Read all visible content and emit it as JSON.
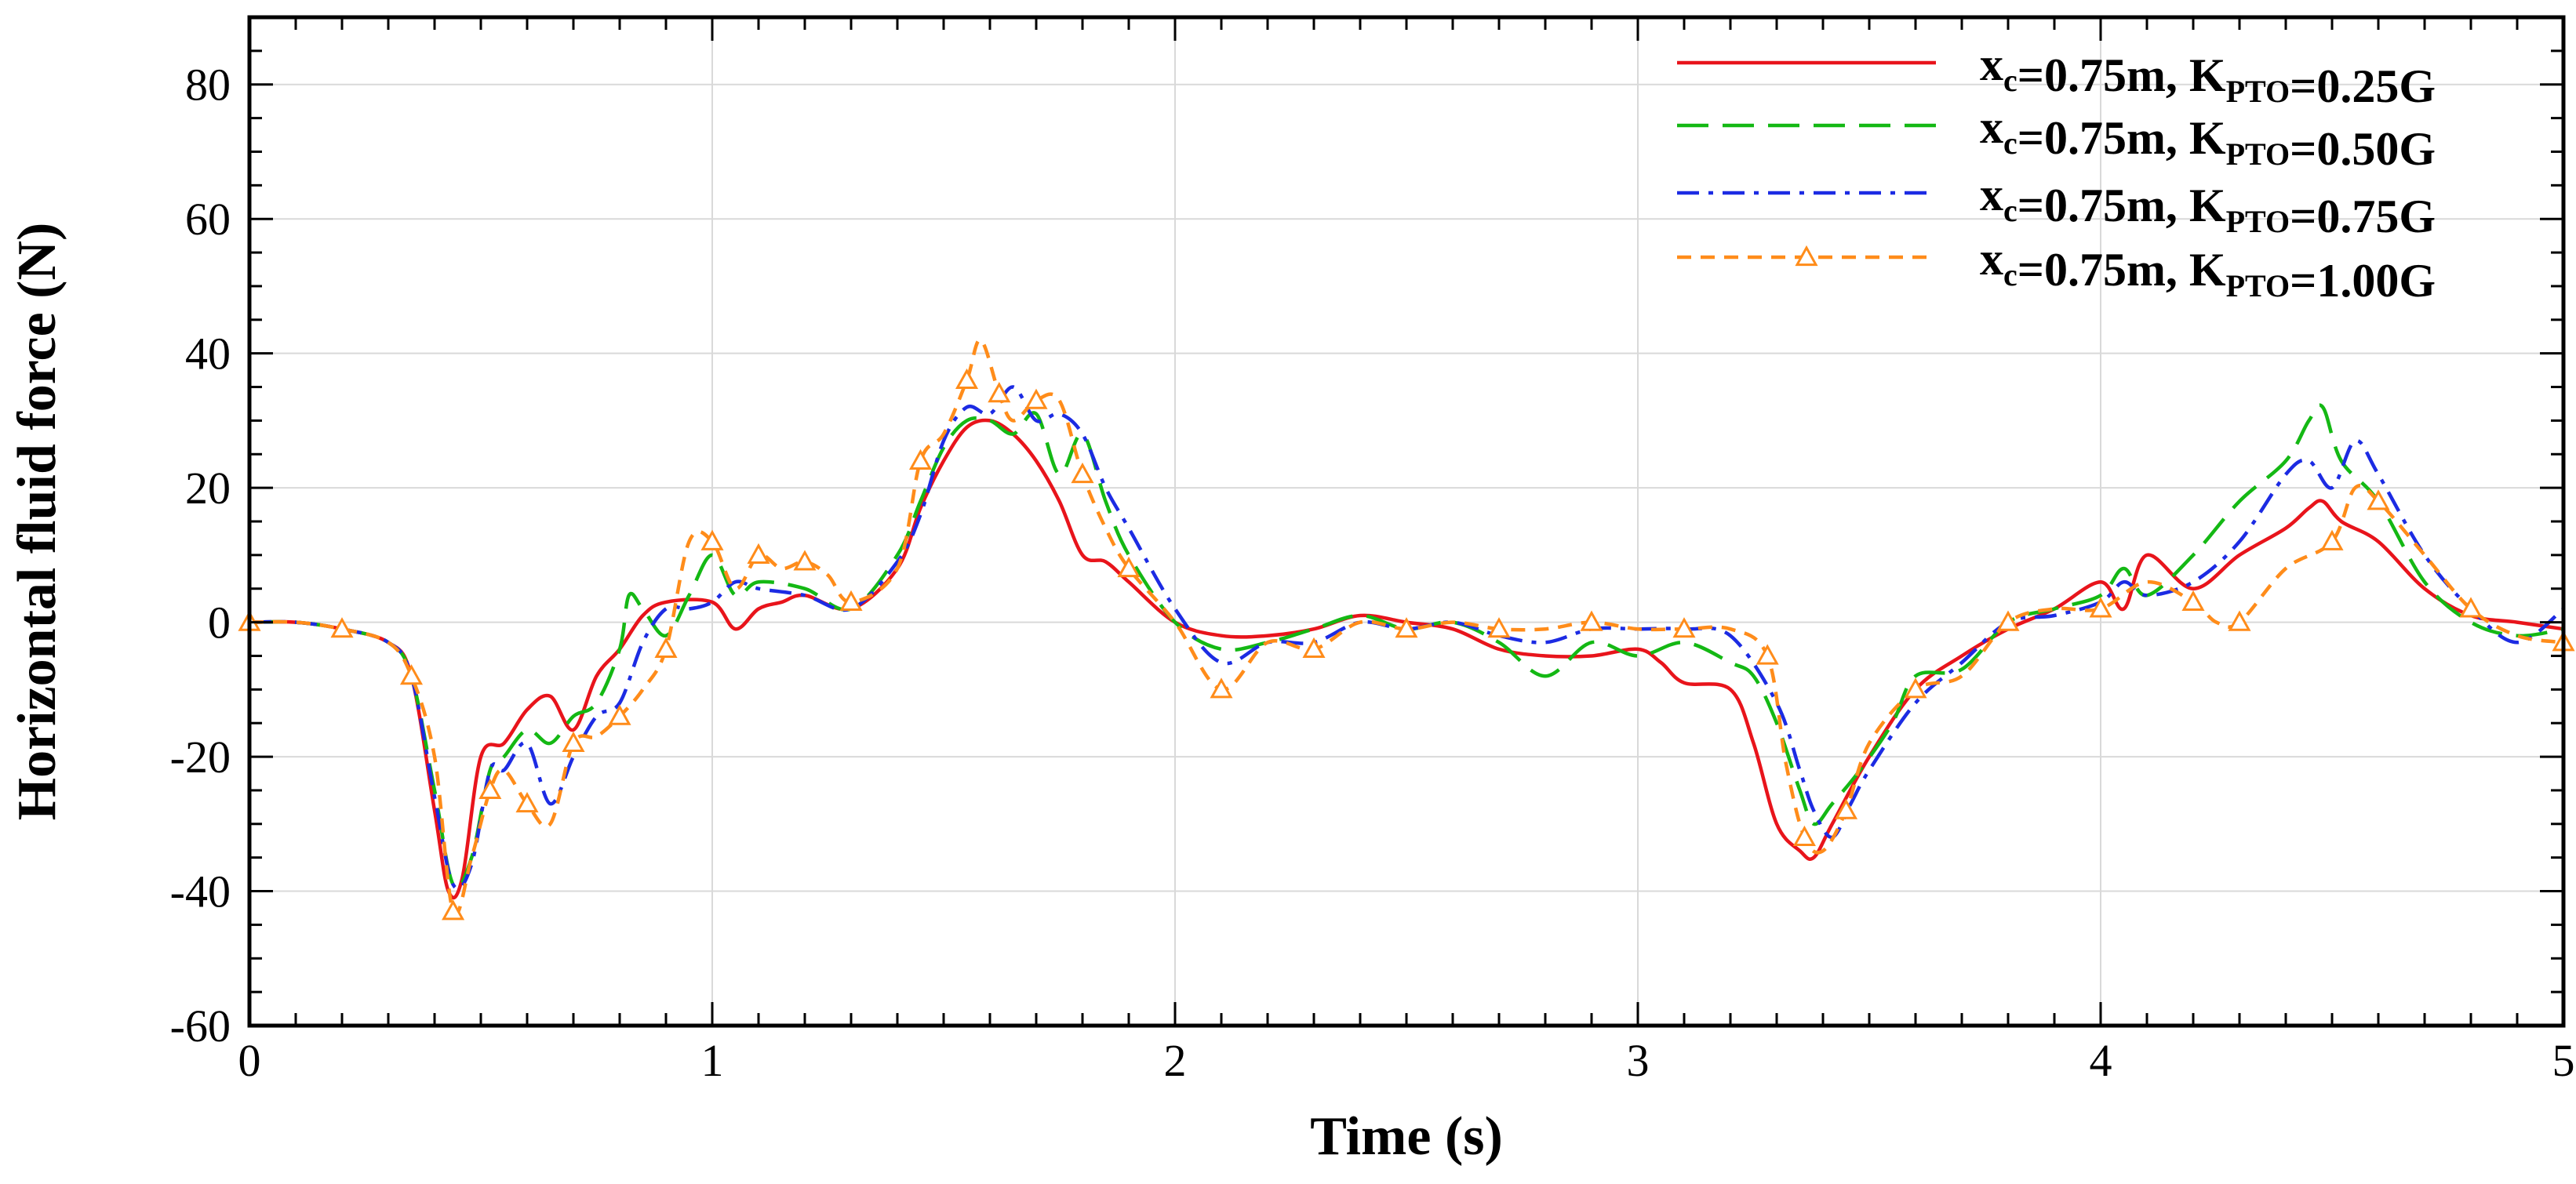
{
  "chart_data": {
    "type": "line",
    "xlabel": "Time (s)",
    "ylabel": "Horizontal fluid force (N)",
    "xlim": [
      0,
      5
    ],
    "ylim": [
      -60,
      90
    ],
    "x_ticks": [
      "0",
      "1",
      "2",
      "3",
      "4",
      "5"
    ],
    "y_ticks": [
      "-60",
      "-40",
      "-20",
      "0",
      "20",
      "40",
      "60",
      "80"
    ],
    "grid": true,
    "legend_position": "top-right",
    "series": [
      {
        "label_main": "x",
        "label_sub": "c",
        "label_mid": "=0.75m, K",
        "label_sub2": "PTO",
        "label_end": "=0.25G",
        "color": "#e8141b",
        "style": "solid",
        "marker": "none",
        "x": [
          0,
          0.1,
          0.2,
          0.3,
          0.35,
          0.4,
          0.43,
          0.46,
          0.5,
          0.55,
          0.6,
          0.65,
          0.7,
          0.75,
          0.8,
          0.85,
          0.9,
          1.0,
          1.05,
          1.1,
          1.15,
          1.2,
          1.3,
          1.4,
          1.45,
          1.5,
          1.55,
          1.6,
          1.65,
          1.7,
          1.75,
          1.8,
          1.85,
          1.9,
          2.0,
          2.1,
          2.2,
          2.3,
          2.4,
          2.5,
          2.6,
          2.7,
          2.8,
          2.9,
          3.0,
          3.05,
          3.1,
          3.2,
          3.25,
          3.3,
          3.35,
          3.38,
          3.42,
          3.5,
          3.6,
          3.7,
          3.8,
          3.9,
          4.0,
          4.05,
          4.1,
          4.2,
          4.3,
          4.4,
          4.45,
          4.48,
          4.52,
          4.6,
          4.7,
          4.8,
          4.9,
          5.0
        ],
        "y": [
          0,
          0,
          -1,
          -3,
          -8,
          -28,
          -40,
          -38,
          -20,
          -18,
          -13,
          -11,
          -16,
          -8,
          -4,
          1,
          3,
          3,
          -1,
          2,
          3,
          4,
          2,
          8,
          17,
          24,
          29,
          30,
          28,
          24,
          18,
          10,
          9,
          6,
          0,
          -2,
          -2,
          -1,
          1,
          0,
          -1,
          -4,
          -5,
          -5,
          -4,
          -6,
          -9,
          -10,
          -18,
          -30,
          -34,
          -35,
          -30,
          -20,
          -10,
          -5,
          -1,
          2,
          6,
          2,
          10,
          5,
          10,
          14,
          17,
          18,
          15,
          12,
          5,
          1,
          0,
          -1
        ]
      },
      {
        "label_main": "x",
        "label_sub": "c",
        "label_mid": "=0.75m, K",
        "label_sub2": "PTO",
        "label_end": "=0.50G",
        "color": "#14b814",
        "style": "dashed",
        "marker": "none",
        "x": [
          0,
          0.1,
          0.2,
          0.3,
          0.35,
          0.4,
          0.44,
          0.48,
          0.52,
          0.55,
          0.6,
          0.65,
          0.7,
          0.75,
          0.8,
          0.82,
          0.85,
          0.9,
          0.95,
          1.0,
          1.05,
          1.1,
          1.2,
          1.3,
          1.4,
          1.45,
          1.5,
          1.55,
          1.6,
          1.65,
          1.7,
          1.75,
          1.8,
          1.85,
          1.9,
          2.0,
          2.1,
          2.2,
          2.3,
          2.4,
          2.5,
          2.6,
          2.7,
          2.8,
          2.9,
          3.0,
          3.1,
          3.2,
          3.25,
          3.3,
          3.35,
          3.38,
          3.42,
          3.48,
          3.55,
          3.6,
          3.7,
          3.8,
          3.9,
          4.0,
          4.05,
          4.1,
          4.2,
          4.3,
          4.4,
          4.45,
          4.48,
          4.52,
          4.6,
          4.7,
          4.8,
          4.9,
          5.0
        ],
        "y": [
          0,
          0,
          -1,
          -3,
          -8,
          -25,
          -39,
          -35,
          -22,
          -20,
          -16,
          -18,
          -14,
          -12,
          -4,
          4,
          2,
          -2,
          4,
          10,
          4,
          6,
          5,
          2,
          10,
          18,
          26,
          30,
          30,
          28,
          31,
          22,
          28,
          18,
          10,
          0,
          -4,
          -3,
          -1,
          1,
          -1,
          0,
          -3,
          -8,
          -3,
          -5,
          -3,
          -6,
          -8,
          -15,
          -25,
          -30,
          -27,
          -22,
          -15,
          -8,
          -7,
          0,
          2,
          4,
          8,
          4,
          10,
          18,
          24,
          30,
          32,
          24,
          18,
          6,
          0,
          -2,
          -1
        ]
      },
      {
        "label_main": "x",
        "label_sub": "c",
        "label_mid": "=0.75m, K",
        "label_sub2": "PTO",
        "label_end": "=0.75G",
        "color": "#1c2be3",
        "style": "dashdot",
        "marker": "none",
        "x": [
          0,
          0.1,
          0.2,
          0.3,
          0.35,
          0.4,
          0.44,
          0.48,
          0.52,
          0.55,
          0.6,
          0.65,
          0.7,
          0.75,
          0.8,
          0.85,
          0.9,
          0.95,
          1.0,
          1.05,
          1.1,
          1.2,
          1.3,
          1.4,
          1.45,
          1.5,
          1.55,
          1.6,
          1.65,
          1.7,
          1.75,
          1.8,
          1.85,
          1.9,
          2.0,
          2.1,
          2.2,
          2.3,
          2.4,
          2.5,
          2.6,
          2.7,
          2.8,
          2.9,
          3.0,
          3.1,
          3.2,
          3.3,
          3.35,
          3.38,
          3.42,
          3.46,
          3.5,
          3.6,
          3.7,
          3.8,
          3.9,
          4.0,
          4.05,
          4.1,
          4.2,
          4.3,
          4.4,
          4.45,
          4.5,
          4.55,
          4.6,
          4.7,
          4.8,
          4.9,
          5.0
        ],
        "y": [
          0,
          0,
          -1,
          -3,
          -8,
          -26,
          -39,
          -36,
          -22,
          -22,
          -18,
          -27,
          -20,
          -14,
          -12,
          -3,
          2,
          2,
          3,
          6,
          5,
          4,
          2,
          9,
          16,
          27,
          32,
          31,
          35,
          30,
          31,
          28,
          20,
          14,
          2,
          -6,
          -3,
          -3,
          0,
          -1,
          0,
          -2,
          -3,
          -1,
          -1,
          -1,
          -2,
          -12,
          -22,
          -28,
          -32,
          -27,
          -22,
          -12,
          -6,
          0,
          1,
          3,
          6,
          4,
          6,
          12,
          22,
          24,
          20,
          27,
          22,
          10,
          2,
          -3,
          2
        ]
      },
      {
        "label_main": "x",
        "label_sub": "c",
        "label_mid": "=0.75m, K",
        "label_sub2": "PTO",
        "label_end": "=1.00G",
        "color": "#ff8c1a",
        "style": "dashed-short",
        "marker": "triangle",
        "x": [
          0,
          0.1,
          0.2,
          0.3,
          0.35,
          0.4,
          0.44,
          0.48,
          0.52,
          0.55,
          0.6,
          0.65,
          0.7,
          0.75,
          0.8,
          0.85,
          0.9,
          0.95,
          1.0,
          1.05,
          1.1,
          1.15,
          1.2,
          1.25,
          1.3,
          1.4,
          1.45,
          1.5,
          1.55,
          1.58,
          1.62,
          1.65,
          1.7,
          1.75,
          1.8,
          1.85,
          1.9,
          2.0,
          2.1,
          2.2,
          2.3,
          2.4,
          2.5,
          2.6,
          2.7,
          2.8,
          2.9,
          3.0,
          3.1,
          3.2,
          3.28,
          3.32,
          3.36,
          3.4,
          3.45,
          3.5,
          3.6,
          3.7,
          3.8,
          3.9,
          4.0,
          4.1,
          4.2,
          4.25,
          4.3,
          4.4,
          4.5,
          4.55,
          4.6,
          4.7,
          4.8,
          4.9,
          5.0
        ],
        "y": [
          0,
          0,
          -1,
          -3,
          -8,
          -20,
          -43,
          -35,
          -25,
          -22,
          -27,
          -30,
          -18,
          -17,
          -14,
          -10,
          -4,
          12,
          12,
          5,
          10,
          8,
          9,
          7,
          3,
          8,
          24,
          28,
          36,
          42,
          34,
          30,
          33,
          33,
          22,
          14,
          8,
          0,
          -10,
          -3,
          -4,
          0,
          -1,
          0,
          -1,
          -1,
          0,
          -1,
          -1,
          -1,
          -5,
          -21,
          -32,
          -34,
          -28,
          -18,
          -10,
          -8,
          0,
          2,
          2,
          6,
          3,
          0,
          0,
          8,
          12,
          20,
          18,
          10,
          2,
          -2,
          -3
        ]
      }
    ]
  }
}
